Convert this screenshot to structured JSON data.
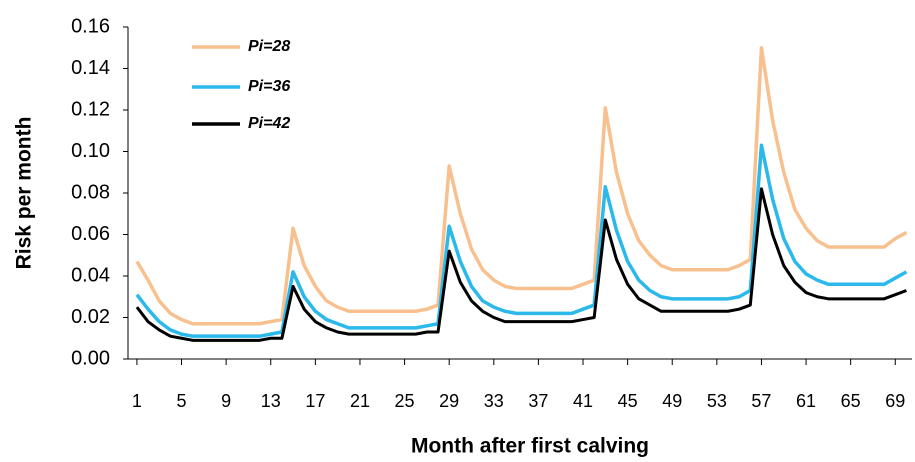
{
  "chart_data": {
    "type": "line",
    "x_label": "Month after first calving",
    "y_label": "Risk per month",
    "x": [
      1,
      2,
      3,
      4,
      5,
      6,
      7,
      8,
      9,
      10,
      11,
      12,
      13,
      14,
      15,
      16,
      17,
      18,
      19,
      20,
      21,
      22,
      23,
      24,
      25,
      26,
      27,
      28,
      29,
      30,
      31,
      32,
      33,
      34,
      35,
      36,
      37,
      38,
      39,
      40,
      41,
      42,
      43,
      44,
      45,
      46,
      47,
      48,
      49,
      50,
      51,
      52,
      53,
      54,
      55,
      56,
      57,
      58,
      59,
      60,
      61,
      62,
      63,
      64,
      65,
      66,
      67,
      68,
      69,
      70
    ],
    "series": [
      {
        "name": "Pi=28",
        "color": "#f9c08f",
        "values": [
          0.047,
          0.038,
          0.028,
          0.022,
          0.019,
          0.017,
          0.017,
          0.017,
          0.017,
          0.017,
          0.017,
          0.017,
          0.018,
          0.019,
          0.063,
          0.045,
          0.035,
          0.028,
          0.025,
          0.023,
          0.023,
          0.023,
          0.023,
          0.023,
          0.023,
          0.023,
          0.024,
          0.026,
          0.093,
          0.07,
          0.053,
          0.043,
          0.038,
          0.035,
          0.034,
          0.034,
          0.034,
          0.034,
          0.034,
          0.034,
          0.036,
          0.038,
          0.121,
          0.09,
          0.07,
          0.057,
          0.05,
          0.045,
          0.043,
          0.043,
          0.043,
          0.043,
          0.043,
          0.043,
          0.045,
          0.048,
          0.15,
          0.115,
          0.09,
          0.072,
          0.063,
          0.057,
          0.054,
          0.054,
          0.054,
          0.054,
          0.054,
          0.054,
          0.058,
          0.061
        ]
      },
      {
        "name": "Pi=36",
        "color": "#2bb8ea",
        "values": [
          0.031,
          0.024,
          0.018,
          0.014,
          0.012,
          0.011,
          0.011,
          0.011,
          0.011,
          0.011,
          0.011,
          0.011,
          0.012,
          0.013,
          0.042,
          0.03,
          0.023,
          0.019,
          0.017,
          0.015,
          0.015,
          0.015,
          0.015,
          0.015,
          0.015,
          0.015,
          0.016,
          0.017,
          0.064,
          0.047,
          0.035,
          0.028,
          0.025,
          0.023,
          0.022,
          0.022,
          0.022,
          0.022,
          0.022,
          0.022,
          0.024,
          0.026,
          0.083,
          0.062,
          0.047,
          0.038,
          0.033,
          0.03,
          0.029,
          0.029,
          0.029,
          0.029,
          0.029,
          0.029,
          0.03,
          0.033,
          0.103,
          0.077,
          0.058,
          0.047,
          0.041,
          0.038,
          0.036,
          0.036,
          0.036,
          0.036,
          0.036,
          0.036,
          0.039,
          0.042
        ]
      },
      {
        "name": "Pi=42",
        "color": "#000000",
        "values": [
          0.025,
          0.018,
          0.014,
          0.011,
          0.01,
          0.009,
          0.009,
          0.009,
          0.009,
          0.009,
          0.009,
          0.009,
          0.01,
          0.01,
          0.035,
          0.024,
          0.018,
          0.015,
          0.013,
          0.012,
          0.012,
          0.012,
          0.012,
          0.012,
          0.012,
          0.012,
          0.013,
          0.013,
          0.052,
          0.037,
          0.028,
          0.023,
          0.02,
          0.018,
          0.018,
          0.018,
          0.018,
          0.018,
          0.018,
          0.018,
          0.019,
          0.02,
          0.067,
          0.048,
          0.036,
          0.029,
          0.026,
          0.023,
          0.023,
          0.023,
          0.023,
          0.023,
          0.023,
          0.023,
          0.024,
          0.026,
          0.082,
          0.06,
          0.045,
          0.037,
          0.032,
          0.03,
          0.029,
          0.029,
          0.029,
          0.029,
          0.029,
          0.029,
          0.031,
          0.033
        ]
      }
    ],
    "xlim": [
      0.2,
      70.5
    ],
    "xticks": [
      1,
      5,
      9,
      13,
      17,
      21,
      25,
      29,
      33,
      37,
      41,
      45,
      49,
      53,
      57,
      61,
      65,
      69
    ],
    "ylim": [
      0,
      0.16
    ],
    "yticks": [
      {
        "value": 0,
        "label": "0.00"
      },
      0.02,
      0.04,
      0.06,
      0.08,
      {
        "value": 0.1,
        "label": "0.10"
      },
      0.12,
      0.14,
      0.16
    ],
    "grid": false,
    "legend": "upper left"
  }
}
